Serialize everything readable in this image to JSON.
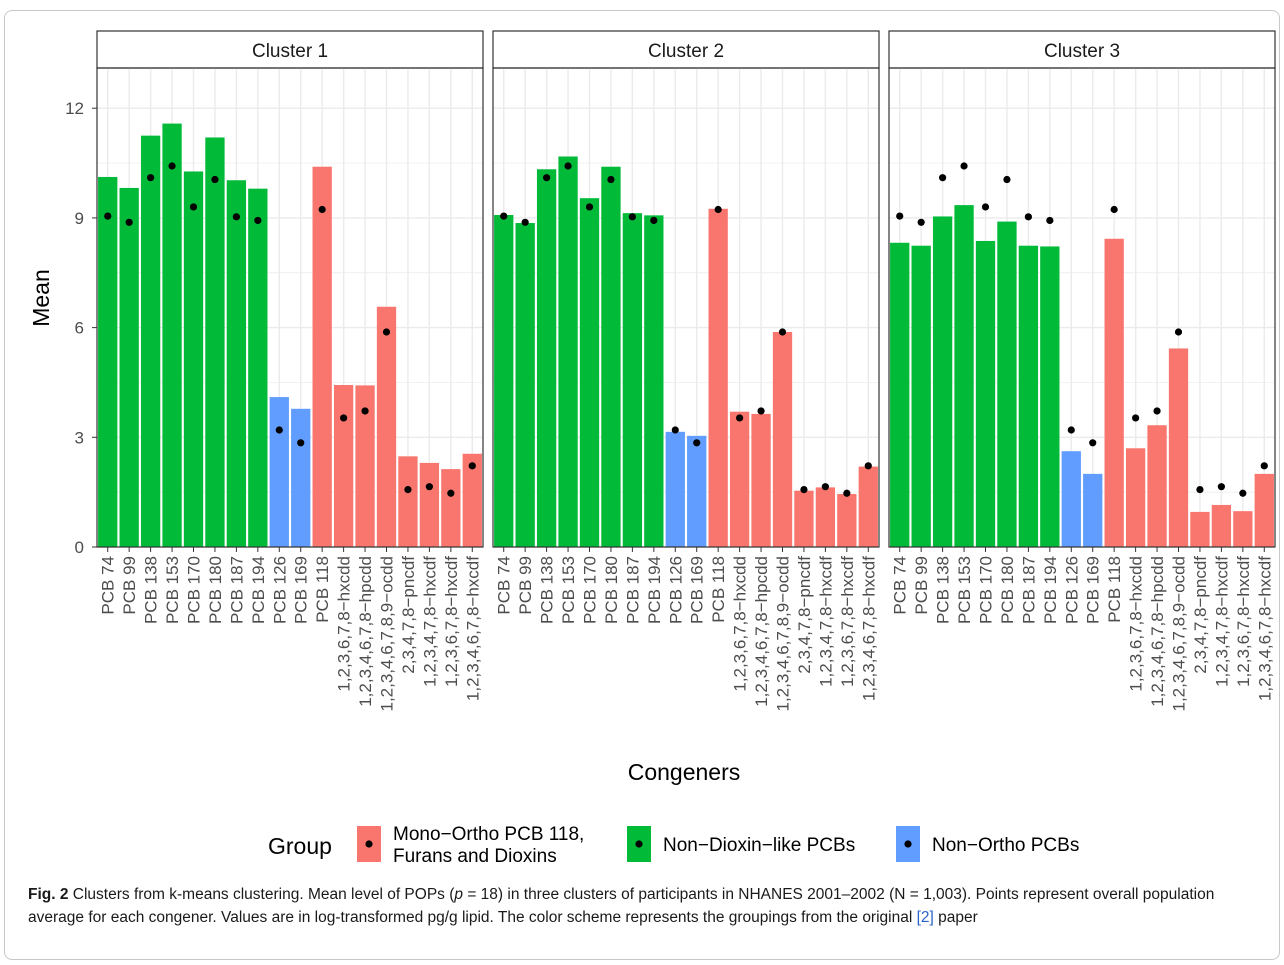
{
  "colors": {
    "mono_ortho": "#F8766D",
    "non_dioxin": "#00BA38",
    "non_ortho": "#619CFF",
    "point": "#000000",
    "strip_bg": "#ffffff",
    "grid": "#ebebeb"
  },
  "chart_data": {
    "type": "bar",
    "ylabel": "Mean",
    "xlabel": "Congeners",
    "ylim": [
      0,
      13.1
    ],
    "yticks": [
      "0",
      "3",
      "6",
      "9",
      "12"
    ],
    "ytick_values": [
      0,
      3,
      6,
      9,
      12
    ],
    "grid": true,
    "legend_position": "bottom",
    "legend": {
      "title": "Group",
      "entries": [
        {
          "key": "mono_ortho",
          "label_line1": "Mono−Ortho PCB 118,",
          "label_line2": "Furans and Dioxins"
        },
        {
          "key": "non_dioxin",
          "label_line1": "Non−Dioxin−like PCBs",
          "label_line2": ""
        },
        {
          "key": "non_ortho",
          "label_line1": "Non−Ortho PCBs",
          "label_line2": ""
        }
      ]
    },
    "categories": [
      "PCB 74",
      "PCB 99",
      "PCB 138",
      "PCB 153",
      "PCB 170",
      "PCB 180",
      "PCB 187",
      "PCB 194",
      "PCB 126",
      "PCB 169",
      "PCB 118",
      "1,2,3,6,7,8−hxcdd",
      "1,2,3,4,6,7,8−hpcdd",
      "1,2,3,4,6,7,8,9−ocdd",
      "2,3,4,7,8−pncdf",
      "1,2,3,4,7,8−hxcdf",
      "1,2,3,6,7,8−hxcdf",
      "1,2,3,4,6,7,8−hxcdf"
    ],
    "groups": [
      "non_dioxin",
      "non_dioxin",
      "non_dioxin",
      "non_dioxin",
      "non_dioxin",
      "non_dioxin",
      "non_dioxin",
      "non_dioxin",
      "non_ortho",
      "non_ortho",
      "mono_ortho",
      "mono_ortho",
      "mono_ortho",
      "mono_ortho",
      "mono_ortho",
      "mono_ortho",
      "mono_ortho",
      "mono_ortho"
    ],
    "population_average": [
      9.05,
      8.88,
      10.1,
      10.42,
      9.3,
      10.05,
      9.03,
      8.93,
      3.2,
      2.85,
      9.23,
      3.53,
      3.72,
      5.88,
      1.57,
      1.65,
      1.47,
      2.22
    ],
    "panels": [
      {
        "title": "Cluster 1",
        "values": [
          10.12,
          9.82,
          11.25,
          11.58,
          10.27,
          11.2,
          10.03,
          9.8,
          4.1,
          3.78,
          10.4,
          4.43,
          4.42,
          6.57,
          2.48,
          2.3,
          2.13,
          2.55
        ]
      },
      {
        "title": "Cluster 2",
        "values": [
          9.08,
          8.86,
          10.33,
          10.68,
          9.54,
          10.4,
          9.13,
          9.07,
          3.15,
          3.04,
          9.25,
          3.7,
          3.64,
          5.88,
          1.54,
          1.63,
          1.45,
          2.2
        ]
      },
      {
        "title": "Cluster 3",
        "values": [
          8.32,
          8.24,
          9.04,
          9.35,
          8.37,
          8.9,
          8.24,
          8.22,
          2.62,
          2.0,
          8.43,
          2.7,
          3.33,
          5.43,
          0.96,
          1.15,
          0.98,
          2.0
        ]
      }
    ]
  },
  "caption": {
    "label": "Fig. 2",
    "text_a": " Clusters from k-means clustering. Mean level of POPs (",
    "p_symbol": "p",
    "text_b": " = 18) in three clusters of participants in NHANES 2001–2002 (N = 1,003). Points represent overall population average for each congener. Values are in log-transformed pg/g lipid. The color scheme represents the groupings from the original ",
    "ref": "[2]",
    "text_c": " paper"
  }
}
